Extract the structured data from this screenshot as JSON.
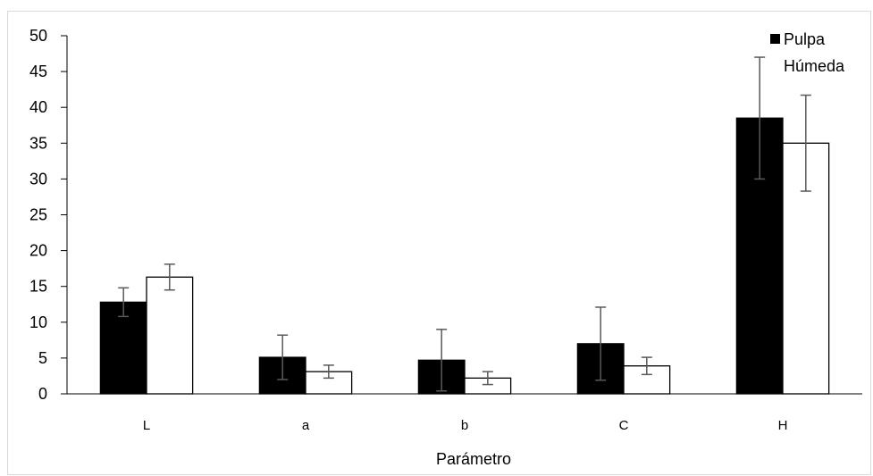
{
  "chart_data": {
    "type": "bar",
    "title": "",
    "xlabel": "Parámetro",
    "ylabel": "",
    "ylim": [
      0,
      50
    ],
    "yticks": [
      0,
      5,
      10,
      15,
      20,
      25,
      30,
      35,
      40,
      45,
      50
    ],
    "categories": [
      "L",
      "a",
      "b",
      "C",
      "H"
    ],
    "series": [
      {
        "name": "Pulpa",
        "color": "#000000",
        "values": [
          12.8,
          5.1,
          4.7,
          7.0,
          38.5
        ],
        "errors": [
          2.0,
          3.1,
          4.3,
          5.1,
          8.5
        ]
      },
      {
        "name": "Húmeda",
        "color": "#ffffff",
        "values": [
          16.3,
          3.1,
          2.2,
          3.9,
          35.0
        ],
        "errors": [
          1.8,
          0.9,
          0.9,
          1.2,
          6.7
        ]
      }
    ],
    "legend": "top-right",
    "grid": false
  }
}
